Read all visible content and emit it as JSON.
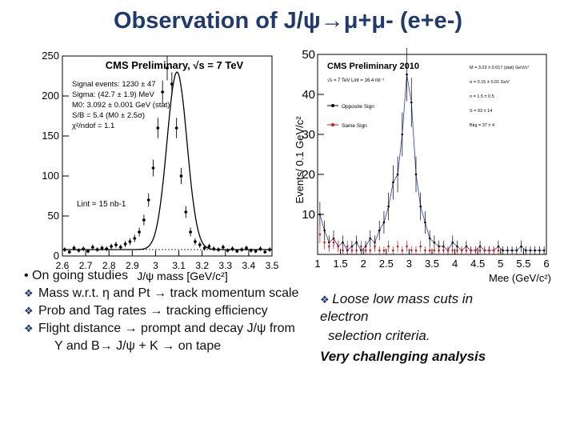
{
  "slide": {
    "title": "Observation of J/ψ→μ+μ- (e+e-)"
  },
  "left_plot": {
    "header": "CMS Preliminary, √s = 7 TeV",
    "info": [
      "Signal events: 1230 ± 47",
      "Sigma: (42.7 ± 1.9) MeV",
      "M0: 3.092 ± 0.001 GeV (stat)",
      "S/B = 5.4 (M0 ± 2.5σ)",
      "χ²/ndof = 1.1"
    ],
    "legend_ann": "Lint = 15 nb-1",
    "xlabel": "J/ψ mass [GeV/c²]"
  },
  "right_plot": {
    "header": "CMS Preliminary 2010",
    "ylabel": "Events/ 0.1 GeV/c²",
    "xlabel": "Mee (GeV/c²)",
    "sublabel": "√s = 7 TeV  Lint = 16.4 nb⁻¹",
    "legend": [
      "Opposite Sign",
      "Same Sign"
    ],
    "params": [
      "M = 3.03 ± 0.017 (stat) GeV/c²",
      "σ = 0.15 ± 0.01 GeV",
      "n = 1.5 ± 0.5",
      "S = 93 ± 14",
      "Bkg = 37 ± 4"
    ]
  },
  "chart_data": [
    {
      "type": "scatter",
      "title": "CMS Preliminary, √s = 7 TeV",
      "xlabel": "J/ψ mass [GeV/c²]",
      "ylabel": "",
      "xlim": [
        2.6,
        3.5
      ],
      "ylim": [
        0,
        250
      ],
      "xticks": [
        "2.6",
        "2.7",
        "2.8",
        "2.9",
        "3",
        "3.1",
        "3.2",
        "3.3",
        "3.4",
        "3.5"
      ],
      "yticks": [
        "0",
        "50",
        "100",
        "150",
        "200",
        "250"
      ],
      "series": [
        {
          "x": [
            2.61,
            2.63,
            2.65,
            2.67,
            2.69,
            2.71,
            2.73,
            2.75,
            2.77,
            2.79,
            2.81,
            2.83,
            2.85,
            2.87,
            2.89,
            2.91,
            2.93,
            2.95,
            2.97,
            2.99,
            3.01,
            3.03,
            3.05,
            3.07,
            3.09,
            3.11,
            3.13,
            3.15,
            3.17,
            3.19,
            3.21,
            3.23,
            3.25,
            3.27,
            3.29,
            3.31,
            3.33,
            3.35,
            3.37,
            3.39,
            3.41,
            3.43,
            3.45,
            3.47,
            3.49
          ],
          "y": [
            8,
            5,
            10,
            7,
            9,
            6,
            11,
            8,
            10,
            9,
            12,
            14,
            11,
            15,
            18,
            22,
            30,
            45,
            70,
            110,
            160,
            205,
            235,
            215,
            160,
            100,
            55,
            30,
            18,
            14,
            10,
            12,
            9,
            8,
            11,
            7,
            9,
            6,
            8,
            10,
            7,
            6,
            9,
            5,
            8
          ]
        }
      ]
    },
    {
      "type": "line",
      "title": "CMS Preliminary 2010",
      "xlabel": "Mee (GeV/c²)",
      "ylabel": "Events/ 0.1 GeV/c²",
      "xlim": [
        1,
        6
      ],
      "ylim": [
        0,
        50
      ],
      "xticks": [
        "1",
        "1.5",
        "2",
        "2.5",
        "3",
        "3.5",
        "4",
        "4.5",
        "5",
        "5.5",
        "6"
      ],
      "yticks": [
        "10",
        "20",
        "30",
        "40",
        "50"
      ],
      "legend_position": "top-left",
      "series": [
        {
          "name": "Opposite Sign",
          "x": [
            1.05,
            1.15,
            1.25,
            1.35,
            1.45,
            1.55,
            1.65,
            1.75,
            1.85,
            1.95,
            2.05,
            2.15,
            2.25,
            2.35,
            2.45,
            2.55,
            2.65,
            2.75,
            2.85,
            2.95,
            3.05,
            3.15,
            3.25,
            3.35,
            3.45,
            3.55,
            3.65,
            3.75,
            3.85,
            3.95,
            4.05,
            4.15,
            4.25,
            4.35,
            4.45,
            4.55,
            4.65,
            4.75,
            4.85,
            4.95,
            5.05,
            5.15,
            5.25,
            5.35,
            5.45,
            5.55,
            5.65,
            5.75,
            5.85,
            5.95
          ],
          "y": [
            10,
            6,
            3,
            4,
            2,
            3,
            1,
            2,
            3,
            1,
            2,
            4,
            3,
            6,
            8,
            12,
            18,
            20,
            30,
            45,
            38,
            20,
            12,
            8,
            4,
            3,
            2,
            2,
            1,
            3,
            2,
            1,
            2,
            1,
            1,
            2,
            1,
            1,
            1,
            2,
            1,
            1,
            1,
            1,
            2,
            1,
            1,
            1,
            1,
            1
          ]
        },
        {
          "name": "Same Sign",
          "x": [
            1.05,
            1.15,
            1.25,
            1.35,
            1.45,
            1.55,
            1.65,
            1.75,
            1.85,
            1.95,
            2.05,
            2.15,
            2.25,
            2.35,
            2.45,
            2.55,
            2.65,
            2.75,
            2.85,
            2.95,
            3.05,
            3.15,
            3.25,
            3.35,
            3.45,
            3.55,
            3.65,
            3.75,
            3.85,
            3.95,
            4.05,
            4.15,
            4.25,
            4.35,
            4.45,
            4.55,
            4.65,
            4.75,
            4.85,
            4.95
          ],
          "y": [
            5,
            3,
            2,
            3,
            2,
            1,
            2,
            1,
            1,
            2,
            1,
            1,
            2,
            1,
            1,
            2,
            1,
            2,
            1,
            2,
            1,
            1,
            2,
            1,
            1,
            1,
            1,
            1,
            1,
            1,
            1,
            1,
            1,
            1,
            1,
            1,
            1,
            1,
            1,
            1
          ]
        }
      ]
    }
  ],
  "bullets": {
    "l0": "• On going studies",
    "l1": "Mass w.r.t. η and Pt → track momentum scale",
    "l2": "Prob and Tag rates → tracking efficiency",
    "l3": "Flight distance → prompt and decay J/ψ from",
    "l4": "Y   and B→ J/ψ + K → on tape"
  },
  "note": {
    "n1": "Loose low mass cuts in",
    "n2": "electron",
    "n3": "selection criteria.",
    "n4": "Very challenging analysis"
  },
  "colors": {
    "title": "#1f3a6e",
    "os_line": "#1a3bc4",
    "ss_red": "#d01818"
  }
}
